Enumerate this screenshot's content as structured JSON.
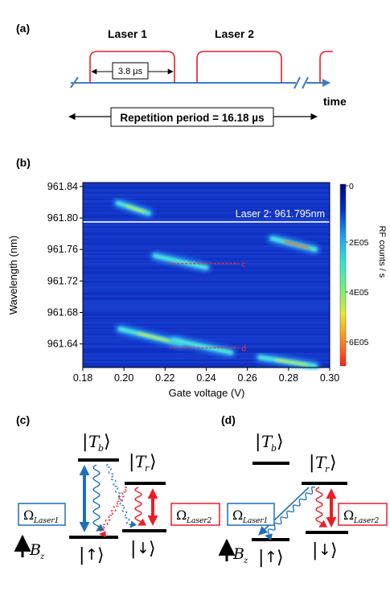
{
  "panel_a": {
    "label": "(a)",
    "laser1": "Laser 1",
    "laser2": "Laser 2",
    "pulse_width": "3.8 µs",
    "axis_label": "time",
    "repetition": "Repetition period = 16.18 µs"
  },
  "panel_b": {
    "label": "(b)",
    "annotation": "Laser 2: 961.795nm",
    "marker_c": "c",
    "marker_d": "d",
    "colorbar_label": "RF counts / s",
    "colorbar_ticks": [
      "0",
      "2E05",
      "4E05",
      "6E05"
    ],
    "colorbar_colors": [
      "#00007f",
      "#0033cc",
      "#1aa0ff",
      "#2ee6d0",
      "#6cf27a",
      "#e8e82a",
      "#ff8a1a",
      "#ff1a1a"
    ]
  },
  "chart_data": {
    "type": "heatmap",
    "xlabel": "Gate voltage (V)",
    "ylabel": "Wavelength (nm)",
    "xlim": [
      0.18,
      0.3
    ],
    "ylim": [
      961.61,
      961.845
    ],
    "xticks": [
      "0.18",
      "0.20",
      "0.22",
      "0.24",
      "0.26",
      "0.28",
      "0.30"
    ],
    "yticks": [
      "961.64",
      "961.68",
      "961.72",
      "961.76",
      "961.80",
      "961.84"
    ],
    "laser_line_wavelength": 961.795,
    "streaks": [
      {
        "x1": 0.197,
        "y1": 961.819,
        "x2": 0.212,
        "y2": 961.806,
        "intensity": 0.9
      },
      {
        "x1": 0.272,
        "y1": 961.774,
        "x2": 0.293,
        "y2": 961.76,
        "intensity": 1.0
      },
      {
        "x1": 0.215,
        "y1": 961.752,
        "x2": 0.24,
        "y2": 961.737,
        "intensity": 0.55
      },
      {
        "x1": 0.198,
        "y1": 961.659,
        "x2": 0.228,
        "y2": 961.64,
        "intensity": 0.75
      },
      {
        "x1": 0.224,
        "y1": 961.645,
        "x2": 0.252,
        "y2": 961.629,
        "intensity": 0.6
      },
      {
        "x1": 0.266,
        "y1": 961.623,
        "x2": 0.293,
        "y2": 961.612,
        "intensity": 0.85
      }
    ],
    "dashed_lines": [
      {
        "x1": 0.222,
        "x2": 0.256,
        "y": 961.742,
        "label": "c"
      },
      {
        "x1": 0.222,
        "x2": 0.256,
        "y": 961.635,
        "label": "d"
      }
    ]
  },
  "panel_c": {
    "label": "(c)",
    "state_Tb": "T",
    "sub_b": "b",
    "state_Tr": "T",
    "sub_r": "r",
    "state_up": "↑",
    "state_down": "↓",
    "omega": "Ω",
    "laser1_sub": "Laser1",
    "laser2_sub": "Laser2",
    "field": "B",
    "field_sub": "z",
    "colors": {
      "blue": "#1f6fb8",
      "red": "#ee1c24"
    }
  },
  "panel_d": {
    "label": "(d)",
    "state_Tb": "T",
    "sub_b": "b",
    "state_Tr": "T",
    "sub_r": "r",
    "state_up": "↑",
    "state_down": "↓",
    "omega": "Ω",
    "laser1_sub": "Laser1",
    "laser2_sub": "Laser2",
    "field": "B",
    "field_sub": "z"
  }
}
